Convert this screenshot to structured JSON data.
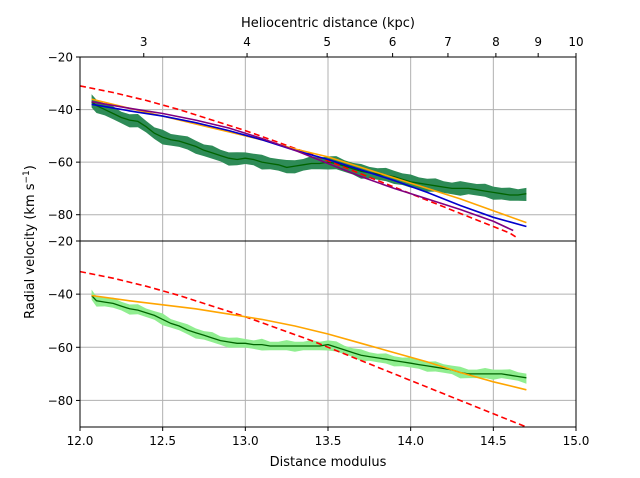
{
  "chart_data": {
    "type": "line",
    "xlabel": "Distance modulus",
    "ylabel": "Radial velocity (km s",
    "ylabel_sup": "−1",
    "ylabel_end": ")",
    "top_axis": {
      "label": "Heliocentric distance (kpc)",
      "ticks": [
        {
          "label": "3",
          "kpc": 3
        },
        {
          "label": "4",
          "kpc": 4
        },
        {
          "label": "5",
          "kpc": 5
        },
        {
          "label": "6",
          "kpc": 6
        },
        {
          "label": "7",
          "kpc": 7
        },
        {
          "label": "8",
          "kpc": 8
        },
        {
          "label": "9",
          "kpc": 9
        },
        {
          "label": "10",
          "kpc": 10
        }
      ]
    },
    "xlim": [
      12.0,
      15.0
    ],
    "xticks": [
      {
        "v": 12.0,
        "label": "12.0"
      },
      {
        "v": 12.5,
        "label": "12.5"
      },
      {
        "v": 13.0,
        "label": "13.0"
      },
      {
        "v": 13.5,
        "label": "13.5"
      },
      {
        "v": 14.0,
        "label": "14.0"
      },
      {
        "v": 14.5,
        "label": "14.5"
      },
      {
        "v": 15.0,
        "label": "15.0"
      }
    ],
    "colors": {
      "dashed": "#ff0000",
      "orange": "#ffa500",
      "blue": "#0000cd",
      "purple": "#800080",
      "dark_green_band": "#2e8b57",
      "dark_green_line": "#006400",
      "light_green_band": "#90ee90",
      "light_green_line": "#006400",
      "grid": "#b0b0b0"
    },
    "panels": [
      {
        "name": "top",
        "ylim": [
          -90,
          -20
        ],
        "yticks": [
          {
            "v": -20,
            "label": "−20"
          },
          {
            "v": -40,
            "label": "−40"
          },
          {
            "v": -60,
            "label": "−60"
          },
          {
            "v": -80,
            "label": "−80"
          }
        ],
        "series": [
          {
            "name": "data-dark",
            "kind": "band",
            "band_key": "dark_green_band",
            "line_key": "dark_green_line",
            "halfwidth": 2.2,
            "x": [
              12.07,
              12.1,
              12.15,
              12.2,
              12.25,
              12.3,
              12.35,
              12.4,
              12.45,
              12.5,
              12.55,
              12.6,
              12.65,
              12.7,
              12.75,
              12.8,
              12.85,
              12.9,
              12.95,
              13.0,
              13.05,
              13.1,
              13.15,
              13.2,
              13.25,
              13.3,
              13.35,
              13.4,
              13.45,
              13.5,
              13.55,
              13.6,
              13.65,
              13.7,
              13.75,
              13.8,
              13.85,
              13.9,
              13.95,
              14.0,
              14.05,
              14.1,
              14.15,
              14.2,
              14.25,
              14.3,
              14.35,
              14.4,
              14.45,
              14.5,
              14.55,
              14.6,
              14.65,
              14.7
            ],
            "y": [
              -37,
              -38.5,
              -40,
              -41.5,
              -43,
              -44,
              -44.5,
              -46.5,
              -49,
              -50.5,
              -51.5,
              -52,
              -53,
              -54,
              -55.5,
              -56.5,
              -57.5,
              -58.5,
              -59,
              -58.5,
              -59,
              -60,
              -60.5,
              -61,
              -62,
              -61.5,
              -61,
              -60.5,
              -60.5,
              -60,
              -60.5,
              -61.5,
              -62.5,
              -63.5,
              -64,
              -64.5,
              -65,
              -65.5,
              -66.5,
              -67.5,
              -68,
              -68.5,
              -69,
              -69.5,
              -70,
              -70,
              -70,
              -70.5,
              -71,
              -71.5,
              -72,
              -72.5,
              -72.5,
              -72
            ]
          },
          {
            "name": "model-dashed",
            "kind": "dashed",
            "color_key": "dashed",
            "x": [
              12.0,
              12.2,
              12.4,
              12.6,
              12.8,
              13.0,
              13.2,
              13.4,
              13.6,
              13.8,
              14.0,
              14.2,
              14.4,
              14.6,
              14.65
            ],
            "y": [
              -31,
              -33.5,
              -36.5,
              -40,
              -44,
              -48,
              -52.5,
              -57,
              -62,
              -67,
              -72,
              -77,
              -82,
              -87,
              -89
            ]
          },
          {
            "name": "model-orange",
            "kind": "line",
            "color_key": "orange",
            "x": [
              12.07,
              12.3,
              12.5,
              12.7,
              12.9,
              13.1,
              13.3,
              13.5,
              13.7,
              13.9,
              14.1,
              14.3,
              14.5,
              14.7
            ],
            "y": [
              -36,
              -39.5,
              -42.5,
              -45.5,
              -48.5,
              -51.5,
              -55,
              -58,
              -62,
              -66,
              -70,
              -74,
              -78.5,
              -83
            ]
          },
          {
            "name": "model-blue",
            "kind": "line",
            "color_key": "blue",
            "x": [
              12.07,
              12.3,
              12.5,
              12.7,
              12.9,
              13.1,
              13.3,
              13.5,
              13.7,
              13.9,
              14.1,
              14.3,
              14.5,
              14.7
            ],
            "y": [
              -38,
              -40.5,
              -42.5,
              -45,
              -48,
              -51.5,
              -55.5,
              -59,
              -63,
              -67,
              -71.5,
              -76.5,
              -81,
              -84.5
            ]
          },
          {
            "name": "model-purple",
            "kind": "line",
            "color_key": "purple",
            "x": [
              12.07,
              12.3,
              12.5,
              12.7,
              12.9,
              13.1,
              13.3,
              13.5,
              13.7,
              13.9,
              14.1,
              14.3,
              14.5,
              14.62
            ],
            "y": [
              -37,
              -39.5,
              -41.5,
              -44,
              -47,
              -51,
              -55.5,
              -60.5,
              -65.5,
              -70,
              -74,
              -78,
              -82.5,
              -86
            ]
          }
        ]
      },
      {
        "name": "bottom",
        "ylim": [
          -90,
          -20
        ],
        "yticks": [
          {
            "v": -20,
            "label": "−20"
          },
          {
            "v": -40,
            "label": "−40"
          },
          {
            "v": -60,
            "label": "−60"
          },
          {
            "v": -80,
            "label": "−80"
          }
        ],
        "series": [
          {
            "name": "data-light",
            "kind": "band",
            "band_key": "light_green_band",
            "line_key": "light_green_line",
            "halfwidth": 1.6,
            "x": [
              12.07,
              12.1,
              12.15,
              12.2,
              12.25,
              12.3,
              12.35,
              12.4,
              12.45,
              12.5,
              12.55,
              12.6,
              12.65,
              12.7,
              12.75,
              12.8,
              12.85,
              12.9,
              12.95,
              13.0,
              13.05,
              13.1,
              13.15,
              13.2,
              13.25,
              13.3,
              13.35,
              13.4,
              13.45,
              13.5,
              13.55,
              13.6,
              13.65,
              13.7,
              13.75,
              13.8,
              13.85,
              13.9,
              13.95,
              14.0,
              14.05,
              14.1,
              14.15,
              14.2,
              14.25,
              14.3,
              14.35,
              14.4,
              14.45,
              14.5,
              14.55,
              14.6,
              14.65,
              14.7
            ],
            "y": [
              -40.5,
              -42.5,
              -43,
              -43.5,
              -44.5,
              -45.5,
              -46,
              -47,
              -48,
              -49.5,
              -51,
              -52,
              -53.5,
              -54.5,
              -55.5,
              -56.5,
              -57.5,
              -58,
              -58.5,
              -58.5,
              -59,
              -59,
              -59.5,
              -59.5,
              -59.5,
              -59.5,
              -59.5,
              -59.5,
              -59.5,
              -59,
              -60,
              -61,
              -62,
              -63,
              -63.5,
              -64,
              -64.5,
              -65,
              -65.5,
              -66,
              -66.5,
              -67,
              -67.5,
              -68,
              -68.5,
              -69.5,
              -70,
              -70,
              -70,
              -70,
              -70,
              -70.5,
              -71,
              -71.5
            ]
          },
          {
            "name": "model-dashed",
            "kind": "dashed",
            "color_key": "dashed",
            "x": [
              12.0,
              12.2,
              12.4,
              12.6,
              12.8,
              13.0,
              13.2,
              13.4,
              13.6,
              13.8,
              14.0,
              14.2,
              14.4,
              14.6,
              14.72
            ],
            "y": [
              -31.5,
              -34,
              -37,
              -40.5,
              -44.5,
              -48.5,
              -53,
              -57.5,
              -62.5,
              -67.5,
              -72.5,
              -77.5,
              -82.5,
              -87.5,
              -90.5
            ]
          },
          {
            "name": "model-orange",
            "kind": "line",
            "color_key": "orange",
            "x": [
              12.07,
              12.3,
              12.5,
              12.7,
              12.9,
              13.1,
              13.3,
              13.5,
              13.7,
              13.9,
              14.1,
              14.3,
              14.5,
              14.7
            ],
            "y": [
              -40.5,
              -42.5,
              -44,
              -45.5,
              -47.5,
              -49.5,
              -52,
              -55,
              -58.5,
              -62,
              -65.5,
              -69.5,
              -73,
              -76
            ]
          }
        ]
      }
    ]
  }
}
